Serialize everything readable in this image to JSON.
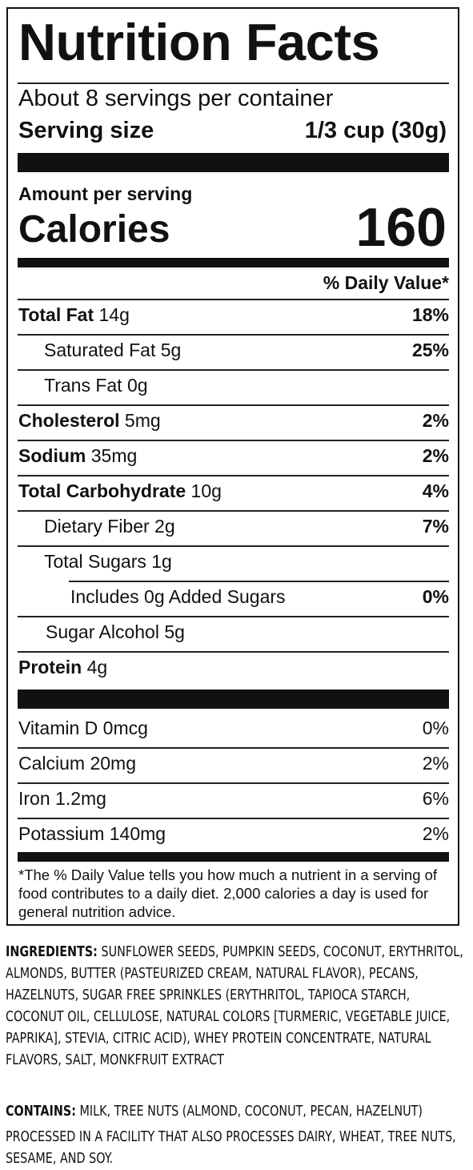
{
  "panel": {
    "title": "Nutrition Facts",
    "servings_per_container": "About 8 servings per container",
    "serving_size_label": "Serving size",
    "serving_size_value": "1/3 cup (30g)",
    "amount_per_serving": "Amount per serving",
    "calories_label": "Calories",
    "calories_value": "160",
    "daily_value_header": "% Daily Value*",
    "nutrients": [
      {
        "name": "Total Fat",
        "amount": " 14g",
        "dv": "18%"
      },
      {
        "name": "Saturated Fat 5g",
        "amount": "",
        "dv": "25%"
      },
      {
        "name": "Trans Fat 0g",
        "amount": "",
        "dv": ""
      },
      {
        "name": "Cholesterol",
        "amount": " 5mg",
        "dv": "2%"
      },
      {
        "name": "Sodium",
        "amount": " 35mg",
        "dv": "2%"
      },
      {
        "name": "Total Carbohydrate",
        "amount": " 10g",
        "dv": "4%"
      },
      {
        "name": "Dietary Fiber 2g",
        "amount": "",
        "dv": "7%"
      },
      {
        "name": "Total Sugars 1g",
        "amount": "",
        "dv": ""
      },
      {
        "name": "Includes 0g Added Sugars",
        "amount": "",
        "dv": "0%"
      },
      {
        "name": "Sugar Alcohol 5g",
        "amount": "",
        "dv": ""
      },
      {
        "name": "Protein",
        "amount": " 4g",
        "dv": ""
      }
    ],
    "vitamins": [
      {
        "name": "Vitamin D 0mcg",
        "dv": "0%"
      },
      {
        "name": "Calcium 20mg",
        "dv": "2%"
      },
      {
        "name": "Iron 1.2mg",
        "dv": "6%"
      },
      {
        "name": "Potassium 140mg",
        "dv": "2%"
      }
    ],
    "footnote": "*The % Daily Value tells you how much a nutrient in a serving of food contributes to a daily diet. 2,000 calories a day is used for general nutrition advice."
  },
  "ingredients": {
    "label": "INGREDIENTS:",
    "text": " SUNFLOWER SEEDS, PUMPKIN SEEDS, COCONUT, ERYTHRITOL, ALMONDS, BUTTER (PASTEURIZED CREAM, NATURAL FLAVOR), PECANS, HAZELNUTS, SUGAR FREE SPRINKLES (ERYTHRITOL, TAPIOCA STARCH, COCONUT OIL, CELLULOSE, NATURAL COLORS [TURMERIC, VEGETABLE JUICE, PAPRIKA], STEVIA, CITRIC ACID), WHEY PROTEIN CONCENTRATE, NATURAL FLAVORS, SALT, MONKFRUIT EXTRACT"
  },
  "contains": {
    "label": "CONTAINS:",
    "text": " MILK, TREE NUTS (ALMOND, COCONUT, PECAN, HAZELNUT)"
  },
  "facility_note": "PROCESSED IN A FACILITY THAT ALSO PROCESSES DAIRY, WHEAT, TREE NUTS, SESAME, AND SOY."
}
